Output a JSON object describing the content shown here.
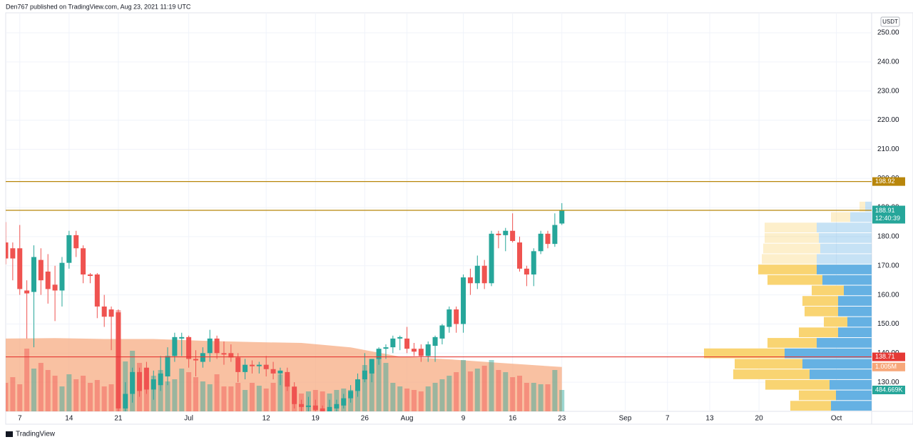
{
  "header": "Den767 published on TradingView.com, Aug 23, 2021 11:19 UTC",
  "footer": "TradingView",
  "chart_data": {
    "type": "candlestick",
    "currency": "USDT",
    "x": [
      "2021-06-05",
      "2021-06-06",
      "2021-06-07",
      "2021-06-08",
      "2021-06-09",
      "2021-06-10",
      "2021-06-11",
      "2021-06-12",
      "2021-06-13",
      "2021-06-14",
      "2021-06-15",
      "2021-06-16",
      "2021-06-17",
      "2021-06-18",
      "2021-06-19",
      "2021-06-20",
      "2021-06-21",
      "2021-06-22",
      "2021-06-23",
      "2021-06-24",
      "2021-06-25",
      "2021-06-26",
      "2021-06-27",
      "2021-06-28",
      "2021-06-29",
      "2021-06-30",
      "2021-07-01",
      "2021-07-02",
      "2021-07-03",
      "2021-07-04",
      "2021-07-05",
      "2021-07-06",
      "2021-07-07",
      "2021-07-08",
      "2021-07-09",
      "2021-07-10",
      "2021-07-11",
      "2021-07-12",
      "2021-07-13",
      "2021-07-14",
      "2021-07-15",
      "2021-07-16",
      "2021-07-17",
      "2021-07-18",
      "2021-07-19",
      "2021-07-20",
      "2021-07-21",
      "2021-07-22",
      "2021-07-23",
      "2021-07-24",
      "2021-07-25",
      "2021-07-26",
      "2021-07-27",
      "2021-07-28",
      "2021-07-29",
      "2021-07-30",
      "2021-07-31",
      "2021-08-01",
      "2021-08-02",
      "2021-08-03",
      "2021-08-04",
      "2021-08-05",
      "2021-08-06",
      "2021-08-07",
      "2021-08-08",
      "2021-08-09",
      "2021-08-10",
      "2021-08-11",
      "2021-08-12",
      "2021-08-13",
      "2021-08-14",
      "2021-08-15",
      "2021-08-16",
      "2021-08-17",
      "2021-08-18",
      "2021-08-19",
      "2021-08-20",
      "2021-08-21",
      "2021-08-22",
      "2021-08-23"
    ],
    "open": [
      178,
      176,
      176,
      161.5,
      161,
      172,
      168,
      163.5,
      161.5,
      171,
      180.5,
      176,
      167,
      167,
      156,
      155,
      154,
      121,
      126,
      133.5,
      135,
      127.5,
      129,
      132,
      139,
      145,
      145.5,
      138,
      137,
      140,
      145,
      140,
      140,
      138.5,
      133.5,
      136,
      135.5,
      136,
      134.5,
      133,
      133.5,
      128.5,
      122.5,
      121.5,
      122,
      121,
      119,
      121,
      122,
      124.5,
      127,
      131,
      133,
      138,
      141.5,
      142,
      145,
      145,
      141.5,
      141.5,
      139,
      142.5,
      145,
      149,
      155,
      150,
      166,
      164,
      170,
      164,
      181,
      180.5,
      182,
      178,
      169,
      167,
      175,
      181,
      177.5,
      184.5
    ],
    "high": [
      185,
      178,
      184,
      165,
      177,
      176,
      174,
      170,
      173,
      182,
      182,
      177,
      167.5,
      167.5,
      160,
      156,
      155,
      130,
      135,
      135,
      137,
      134,
      139,
      142,
      147,
      147,
      146,
      141,
      142,
      148,
      146,
      144,
      143,
      140,
      138,
      137.5,
      137,
      139,
      137,
      135,
      135,
      130,
      124,
      125,
      124,
      122,
      124,
      124,
      126,
      129,
      133,
      140,
      138,
      142,
      143,
      146,
      146,
      149,
      143.5,
      143,
      144,
      146,
      150,
      156,
      156,
      167,
      169,
      173.5,
      172,
      182,
      182,
      183,
      188,
      180,
      170,
      176,
      182,
      182,
      188,
      191.5
    ],
    "low": [
      170.5,
      165,
      160,
      145,
      142,
      160,
      157,
      151,
      156,
      169,
      173,
      164,
      164,
      152,
      149,
      141,
      120,
      120,
      123,
      125,
      126,
      124,
      127,
      129,
      137,
      139,
      135,
      132,
      135,
      137,
      138,
      136,
      137,
      130,
      131,
      133,
      133,
      132,
      131,
      129,
      127,
      121,
      120,
      120,
      119.5,
      118,
      118,
      119,
      121,
      123,
      125,
      130,
      130,
      136,
      138,
      140,
      141,
      140,
      139,
      137,
      137,
      137,
      143,
      147,
      147,
      147,
      160,
      162,
      162,
      163,
      176,
      175,
      178,
      168,
      163,
      163,
      174,
      176,
      176.5,
      184
    ],
    "close": [
      172.5,
      172.5,
      162,
      160.5,
      173,
      165,
      162,
      161.5,
      171,
      180.5,
      176,
      167,
      166.5,
      156,
      152.5,
      152.5,
      121,
      126,
      133.5,
      127,
      127.5,
      131,
      133,
      139,
      145.5,
      145.5,
      138,
      137.5,
      140,
      145,
      140,
      139.5,
      138.5,
      133.5,
      136,
      135.5,
      136,
      134.5,
      133,
      134,
      128.5,
      122.5,
      121.5,
      122,
      120.5,
      119,
      121.5,
      122.5,
      124.5,
      127,
      131,
      134,
      138,
      141.5,
      142,
      145,
      145.5,
      141.5,
      140.5,
      139,
      143,
      145.5,
      149.5,
      155,
      150,
      166,
      164,
      170,
      164,
      181,
      180.5,
      182,
      178.5,
      169,
      167,
      175,
      181,
      177.5,
      184,
      188.91
    ],
    "up_color": "#26a69a",
    "down_color": "#ef5350",
    "volume": [
      646000,
      775000,
      614000,
      1421000,
      969000,
      1098000,
      937000,
      808000,
      565000,
      840000,
      727000,
      808000,
      646000,
      711000,
      565000,
      614000,
      2293000,
      1131000,
      1373000,
      1098000,
      969000,
      808000,
      937000,
      678000,
      727000,
      969000,
      888000,
      775000,
      678000,
      614000,
      840000,
      565000,
      565000,
      646000,
      485000,
      646000,
      581000,
      517000,
      646000,
      840000,
      808000,
      485000,
      404000,
      452000,
      485000,
      452000,
      404000,
      485000,
      517000,
      485000,
      646000,
      1050000,
      969000,
      1211000,
      1098000,
      646000,
      565000,
      517000,
      485000,
      452000,
      565000,
      646000,
      727000,
      808000,
      888000,
      1163000,
      904000,
      969000,
      1034000,
      1163000,
      937000,
      888000,
      775000,
      808000,
      646000,
      646000,
      614000,
      614000,
      937000,
      484669
    ],
    "volume_label": "484.669K",
    "volume_lim": [
      0,
      9030000
    ],
    "volume_ma": {
      "x": [
        "2021-06-05",
        "2021-06-12",
        "2021-06-19",
        "2021-06-26",
        "2021-07-03",
        "2021-07-10",
        "2021-07-17",
        "2021-07-24",
        "2021-07-31",
        "2021-08-07",
        "2021-08-14",
        "2021-08-23"
      ],
      "values": [
        1650000,
        1660000,
        1640000,
        1640000,
        1600000,
        1570000,
        1550000,
        1450000,
        1240000,
        1180000,
        1100000,
        1005000
      ],
      "color": "#f7a77a",
      "label": "1.005M"
    },
    "countdown": "12:40:39",
    "levels": [
      {
        "value": 198.92,
        "color": "#b8860b"
      },
      {
        "value": 189.03,
        "color": "#b8860b"
      },
      {
        "value": 138.71,
        "color": "#e53935"
      }
    ],
    "profile": {
      "range": [
        120,
        192
      ],
      "value_area": [
        120,
        170.4
      ],
      "up_color": "#5dade2",
      "down_color": "#f9d26a",
      "up": [
        57,
        50,
        59,
        87,
        97,
        122,
        77,
        47,
        34,
        47,
        47,
        39,
        69,
        77,
        77,
        72,
        74,
        77,
        30,
        9
      ],
      "down": [
        57,
        52,
        90,
        107,
        95,
        113,
        69,
        55,
        33,
        47,
        50,
        45,
        77,
        82,
        77,
        80,
        76,
        73,
        27,
        8
      ]
    },
    "xlim": [
      "2021-06-05",
      "2021-10-06"
    ],
    "xticks": [
      {
        "value": "2021-06-07",
        "label": "7"
      },
      {
        "value": "2021-06-14",
        "label": "14"
      },
      {
        "value": "2021-06-21",
        "label": "21"
      },
      {
        "value": "2021-07-01",
        "label": "Jul"
      },
      {
        "value": "2021-07-12",
        "label": "12"
      },
      {
        "value": "2021-07-19",
        "label": "19"
      },
      {
        "value": "2021-07-26",
        "label": "26"
      },
      {
        "value": "2021-08-01",
        "label": "Aug"
      },
      {
        "value": "2021-08-09",
        "label": "9"
      },
      {
        "value": "2021-08-16",
        "label": "16"
      },
      {
        "value": "2021-08-23",
        "label": "23"
      },
      {
        "value": "2021-09-01",
        "label": "Sep"
      },
      {
        "value": "2021-09-07",
        "label": "7"
      },
      {
        "value": "2021-09-13",
        "label": "13"
      },
      {
        "value": "2021-09-20",
        "label": "20"
      },
      {
        "value": "2021-10-01",
        "label": "Oct"
      }
    ],
    "ylim": [
      120,
      256.85
    ],
    "yticks": [
      {
        "value": 130,
        "label": "130.00"
      },
      {
        "value": 140,
        "label": "140.00"
      },
      {
        "value": 150,
        "label": "150.00"
      },
      {
        "value": 160,
        "label": "160.00"
      },
      {
        "value": 170,
        "label": "170.00"
      },
      {
        "value": 180,
        "label": "180.00"
      },
      {
        "value": 190,
        "label": "190.00"
      },
      {
        "value": 200,
        "label": "200.00"
      },
      {
        "value": 210,
        "label": "210.00"
      },
      {
        "value": 220,
        "label": "220.00"
      },
      {
        "value": 230,
        "label": "230.00"
      },
      {
        "value": 240,
        "label": "240.00"
      },
      {
        "value": 250,
        "label": "250.00"
      }
    ],
    "grid": true
  }
}
